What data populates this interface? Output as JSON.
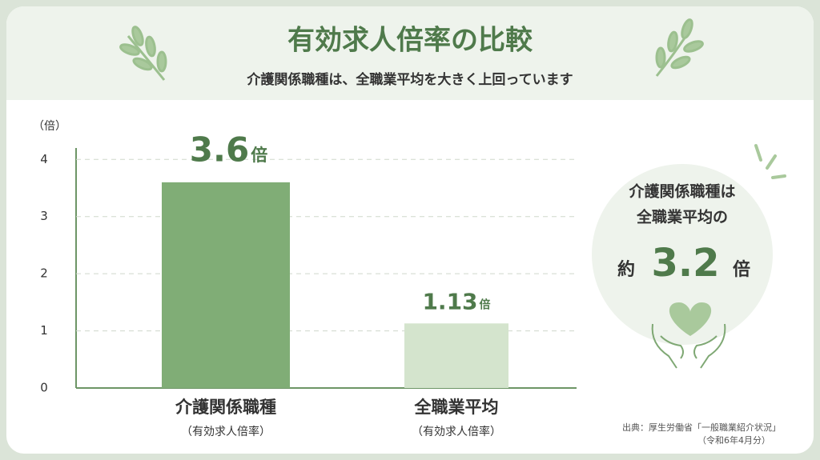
{
  "chart_data": {
    "type": "bar",
    "title": "有効求人倍率の比較",
    "subtitle": "介護関係職種は、全職業平均を大きく上回っています",
    "y_label": "（倍）",
    "categories": [
      "介護関係職種",
      "全職業平均"
    ],
    "category_notes": [
      "（有効求人倍率）",
      "（有効求人倍率）"
    ],
    "values": [
      3.6,
      1.13
    ],
    "value_unit": "倍",
    "colors": [
      "#80ad76",
      "#d4e4cd"
    ],
    "ylim": [
      0,
      4.2
    ],
    "yticks": [
      0,
      1,
      2,
      3,
      4
    ],
    "grid": true,
    "callout": {
      "line1": "介護関係職種は",
      "line2": "全職業平均の",
      "prefix": "約",
      "ratio": 3.2,
      "unit": "倍"
    },
    "source": "出典：厚生労働省「一般職業紹介状況」",
    "source_period": "（令和6年4月分）"
  }
}
